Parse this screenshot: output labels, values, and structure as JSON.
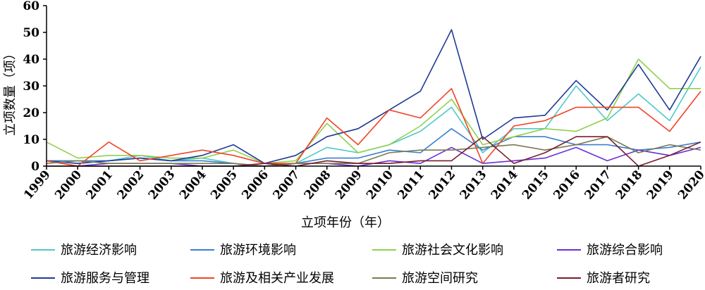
{
  "chart_data": {
    "type": "line",
    "xlabel": "立项年份（年）",
    "ylabel": "立项数量（项）",
    "ylim": [
      0,
      60
    ],
    "yticks": [
      0,
      10,
      20,
      30,
      40,
      50,
      60
    ],
    "x": [
      "1999",
      "2000",
      "2001",
      "2002",
      "2003",
      "2004",
      "2005",
      "2006",
      "2007",
      "2008",
      "2009",
      "2010",
      "2011",
      "2012",
      "2013",
      "2014",
      "2015",
      "2016",
      "2017",
      "2018",
      "2019",
      "2020"
    ],
    "legend_position": "bottom",
    "grid": false,
    "series": [
      {
        "name": "旅游经济影响",
        "color": "#4fc8c8",
        "values": [
          2,
          1,
          2,
          4,
          2,
          3,
          1,
          0,
          1,
          7,
          5,
          8,
          13,
          22,
          5,
          14,
          14,
          30,
          17,
          27,
          17,
          37
        ]
      },
      {
        "name": "旅游环境影响",
        "color": "#3a7fd0",
        "values": [
          2,
          2,
          2,
          3,
          2,
          2,
          1,
          0,
          1,
          3,
          3,
          6,
          5,
          14,
          6,
          11,
          11,
          8,
          8,
          6,
          7,
          9
        ]
      },
      {
        "name": "旅游社会文化影响",
        "color": "#8fd14f",
        "values": [
          9,
          3,
          4,
          4,
          3,
          3,
          6,
          1,
          2,
          16,
          5,
          8,
          15,
          25,
          8,
          11,
          14,
          13,
          18,
          40,
          29,
          29
        ]
      },
      {
        "name": "旅游综合影响",
        "color": "#6a2fd8",
        "values": [
          2,
          0,
          1,
          1,
          1,
          0,
          0,
          0,
          1,
          1,
          0,
          2,
          1,
          7,
          1,
          2,
          3,
          7,
          2,
          6,
          4,
          7
        ]
      },
      {
        "name": "旅游服务与管理",
        "color": "#1f3a93",
        "values": [
          2,
          1,
          2,
          3,
          2,
          4,
          8,
          1,
          4,
          11,
          14,
          21,
          28,
          51,
          10,
          18,
          19,
          32,
          21,
          38,
          21,
          41
        ]
      },
      {
        "name": "旅游及相关产业发展",
        "color": "#f04428",
        "values": [
          2,
          0,
          9,
          2,
          4,
          6,
          4,
          1,
          1,
          18,
          8,
          21,
          18,
          29,
          1,
          15,
          17,
          22,
          22,
          22,
          13,
          28
        ]
      },
      {
        "name": "旅游空间研究",
        "color": "#7a7a52",
        "values": [
          1,
          2,
          1,
          1,
          1,
          1,
          1,
          0,
          1,
          1,
          1,
          5,
          6,
          6,
          7,
          8,
          6,
          8,
          11,
          5,
          8,
          6
        ]
      },
      {
        "name": "旅游者研究",
        "color": "#7a1c2c",
        "values": [
          0,
          0,
          0,
          0,
          0,
          0,
          0,
          1,
          0,
          2,
          1,
          1,
          2,
          2,
          11,
          1,
          5,
          11,
          11,
          0,
          4,
          9
        ]
      }
    ]
  }
}
